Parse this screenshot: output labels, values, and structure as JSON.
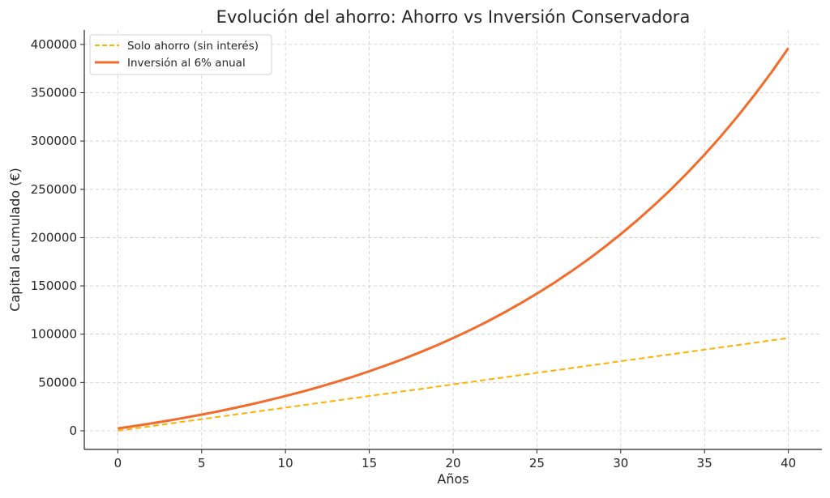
{
  "chart_data": {
    "type": "line",
    "title": "Evolución del ahorro: Ahorro vs Inversión Conservadora",
    "xlabel": "Años",
    "ylabel": "Capital acumulado (€)",
    "xlim": [
      -2,
      42
    ],
    "ylim": [
      -19300,
      415000
    ],
    "xticks": [
      0,
      5,
      10,
      15,
      20,
      25,
      30,
      35,
      40
    ],
    "yticks": [
      0,
      50000,
      100000,
      150000,
      200000,
      250000,
      300000,
      350000,
      400000
    ],
    "grid": true,
    "legend_position": "top-left",
    "x": [
      0,
      1,
      2,
      3,
      4,
      5,
      6,
      7,
      8,
      9,
      10,
      11,
      12,
      13,
      14,
      15,
      16,
      17,
      18,
      19,
      20,
      21,
      22,
      23,
      24,
      25,
      26,
      27,
      28,
      29,
      30,
      31,
      32,
      33,
      34,
      35,
      36,
      37,
      38,
      39,
      40
    ],
    "series": [
      {
        "name": "Solo ahorro (sin interés)",
        "color": "#ffb000",
        "style": "dashed",
        "values": [
          0,
          2400,
          4800,
          7200,
          9600,
          12000,
          14400,
          16800,
          19200,
          21600,
          24000,
          26400,
          28800,
          31200,
          33600,
          36000,
          38400,
          40800,
          43200,
          45600,
          48000,
          50400,
          52800,
          55200,
          57600,
          60000,
          62400,
          64800,
          67200,
          69600,
          72000,
          74400,
          76800,
          79200,
          81600,
          84000,
          86400,
          88800,
          91200,
          93600,
          96000
        ]
      },
      {
        "name": "Inversión al 6% anual",
        "color": "#f26b2a",
        "style": "solid",
        "values": [
          2400,
          4944,
          7641,
          10499,
          13529,
          16741,
          20145,
          23754,
          27579,
          31634,
          35932,
          40488,
          45317,
          50436,
          55862,
          61614,
          67711,
          74174,
          81024,
          88285,
          95983,
          104142,
          112790,
          121957,
          131675,
          141975,
          152894,
          164468,
          176736,
          189740,
          203524,
          218136,
          233624,
          250041,
          267444,
          285890,
          305444,
          326170,
          348140,
          371429,
          396114
        ]
      }
    ]
  }
}
